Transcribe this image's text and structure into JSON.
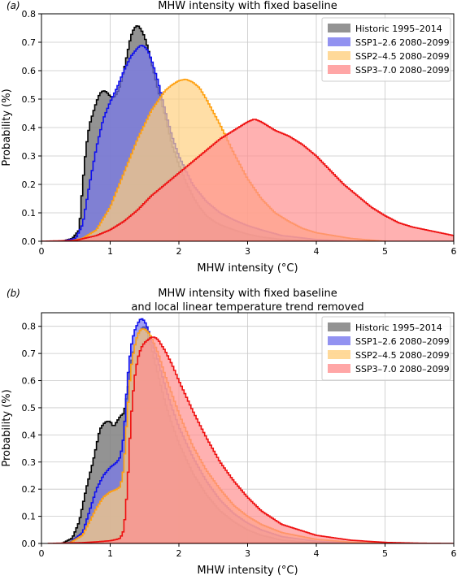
{
  "chart_data": [
    {
      "type": "area",
      "panel_label": "(a)",
      "title": "MHW intensity with fixed baseline",
      "xlabel": "MHW intensity (°C)",
      "ylabel": "Probability (%)",
      "xlim": [
        0,
        6
      ],
      "ylim": [
        0,
        0.8
      ],
      "xticks": [
        0,
        1,
        2,
        3,
        4,
        5,
        6
      ],
      "yticks": [
        0.0,
        0.1,
        0.2,
        0.3,
        0.4,
        0.5,
        0.6,
        0.7,
        0.8
      ],
      "grid": true,
      "legend_position": "top-right",
      "series": [
        {
          "name": "Historic 1995–2014",
          "fill": "#808080",
          "edge": "#000000",
          "x": [
            0.3,
            0.45,
            0.55,
            0.6,
            0.65,
            0.7,
            0.75,
            0.8,
            0.85,
            0.9,
            0.95,
            1.0,
            1.05,
            1.1,
            1.15,
            1.2,
            1.25,
            1.3,
            1.35,
            1.4,
            1.45,
            1.5,
            1.55,
            1.6,
            1.7,
            1.8,
            1.9,
            2.0,
            2.1,
            2.2,
            2.3,
            2.4,
            2.5,
            2.6,
            2.8,
            3.0,
            3.2,
            3.4,
            3.6,
            3.8,
            4.0,
            4.5
          ],
          "y": [
            0.0,
            0.01,
            0.04,
            0.2,
            0.33,
            0.41,
            0.45,
            0.49,
            0.52,
            0.53,
            0.525,
            0.51,
            0.505,
            0.52,
            0.55,
            0.6,
            0.66,
            0.72,
            0.75,
            0.76,
            0.745,
            0.72,
            0.68,
            0.63,
            0.53,
            0.44,
            0.34,
            0.27,
            0.21,
            0.16,
            0.12,
            0.09,
            0.072,
            0.058,
            0.04,
            0.025,
            0.015,
            0.009,
            0.005,
            0.003,
            0.001,
            0.0
          ]
        },
        {
          "name": "SSP1–2.6 2080–2099",
          "fill": "#7777ee",
          "edge": "#1010ee",
          "x": [
            0.3,
            0.5,
            0.6,
            0.7,
            0.8,
            0.9,
            1.0,
            1.1,
            1.2,
            1.3,
            1.4,
            1.45,
            1.5,
            1.55,
            1.6,
            1.7,
            1.8,
            1.9,
            2.0,
            2.2,
            2.4,
            2.6,
            2.8,
            3.0,
            3.2,
            3.5,
            4.0,
            4.5
          ],
          "y": [
            0.0,
            0.01,
            0.06,
            0.2,
            0.33,
            0.43,
            0.49,
            0.54,
            0.6,
            0.65,
            0.68,
            0.69,
            0.685,
            0.67,
            0.64,
            0.56,
            0.46,
            0.37,
            0.3,
            0.2,
            0.14,
            0.1,
            0.075,
            0.055,
            0.04,
            0.02,
            0.006,
            0.0
          ]
        },
        {
          "name": "SSP2–4.5 2080–2099",
          "fill": "#ffd080",
          "edge": "#ffa010",
          "x": [
            0.4,
            0.6,
            0.8,
            1.0,
            1.2,
            1.4,
            1.6,
            1.8,
            1.9,
            2.0,
            2.1,
            2.2,
            2.3,
            2.4,
            2.6,
            2.8,
            3.0,
            3.2,
            3.4,
            3.6,
            3.8,
            4.0,
            4.5,
            5.0
          ],
          "y": [
            0.0,
            0.01,
            0.04,
            0.12,
            0.24,
            0.36,
            0.46,
            0.53,
            0.55,
            0.565,
            0.57,
            0.56,
            0.54,
            0.5,
            0.41,
            0.31,
            0.22,
            0.15,
            0.1,
            0.07,
            0.045,
            0.03,
            0.01,
            0.0
          ]
        },
        {
          "name": "SSP3–7.0 2080–2099",
          "fill": "#ff9090",
          "edge": "#ee1010",
          "x": [
            0.0,
            0.5,
            0.8,
            1.0,
            1.2,
            1.4,
            1.6,
            1.8,
            2.0,
            2.2,
            2.4,
            2.6,
            2.8,
            3.0,
            3.1,
            3.2,
            3.4,
            3.6,
            3.8,
            4.0,
            4.2,
            4.4,
            4.6,
            4.8,
            5.0,
            5.2,
            5.4,
            5.6,
            5.8,
            6.0
          ],
          "y": [
            0.0,
            0.003,
            0.02,
            0.04,
            0.07,
            0.11,
            0.16,
            0.2,
            0.24,
            0.28,
            0.32,
            0.36,
            0.39,
            0.42,
            0.43,
            0.42,
            0.39,
            0.37,
            0.34,
            0.3,
            0.25,
            0.2,
            0.16,
            0.12,
            0.09,
            0.065,
            0.05,
            0.04,
            0.03,
            0.02
          ]
        }
      ]
    },
    {
      "type": "area",
      "panel_label": "(b)",
      "title": "MHW intensity with fixed baseline",
      "subtitle": "and local linear temperature trend removed",
      "xlabel": "MHW intensity (°C)",
      "ylabel": "Probability (%)",
      "xlim": [
        0,
        6
      ],
      "ylim": [
        0,
        0.85
      ],
      "xticks": [
        0,
        1,
        2,
        3,
        4,
        5,
        6
      ],
      "yticks": [
        0.0,
        0.1,
        0.2,
        0.3,
        0.4,
        0.5,
        0.6,
        0.7,
        0.8
      ],
      "grid": true,
      "legend_position": "top-right",
      "series": [
        {
          "name": "Historic 1995–2014",
          "fill": "#808080",
          "edge": "#000000",
          "x": [
            0.3,
            0.45,
            0.55,
            0.65,
            0.75,
            0.8,
            0.85,
            0.9,
            0.95,
            1.0,
            1.05,
            1.1,
            1.15,
            1.2,
            1.25,
            1.3,
            1.35,
            1.4,
            1.45,
            1.5,
            1.55,
            1.6,
            1.7,
            1.8,
            1.9,
            2.0,
            2.2,
            2.4,
            2.6,
            2.8,
            3.0,
            3.2,
            3.5,
            4.0,
            4.5
          ],
          "y": [
            0.0,
            0.02,
            0.08,
            0.2,
            0.3,
            0.36,
            0.42,
            0.44,
            0.45,
            0.45,
            0.43,
            0.45,
            0.47,
            0.48,
            0.55,
            0.66,
            0.72,
            0.76,
            0.79,
            0.8,
            0.77,
            0.72,
            0.62,
            0.52,
            0.44,
            0.37,
            0.26,
            0.18,
            0.12,
            0.08,
            0.05,
            0.03,
            0.012,
            0.003,
            0.0
          ]
        },
        {
          "name": "SSP1–2.6 2080–2099",
          "fill": "#7777ee",
          "edge": "#1010ee",
          "x": [
            0.4,
            0.6,
            0.7,
            0.8,
            0.9,
            1.0,
            1.05,
            1.1,
            1.15,
            1.2,
            1.25,
            1.3,
            1.35,
            1.4,
            1.45,
            1.5,
            1.55,
            1.6,
            1.7,
            1.8,
            1.9,
            2.0,
            2.2,
            2.4,
            2.6,
            2.8,
            3.0,
            3.2,
            3.5,
            4.0,
            4.5,
            5.0
          ],
          "y": [
            0.0,
            0.04,
            0.12,
            0.2,
            0.25,
            0.28,
            0.29,
            0.3,
            0.32,
            0.4,
            0.6,
            0.72,
            0.78,
            0.81,
            0.83,
            0.82,
            0.79,
            0.75,
            0.67,
            0.58,
            0.5,
            0.43,
            0.32,
            0.23,
            0.16,
            0.11,
            0.075,
            0.05,
            0.025,
            0.008,
            0.002,
            0.0
          ]
        },
        {
          "name": "SSP2–4.5 2080–2099",
          "fill": "#ffd080",
          "edge": "#ffa010",
          "x": [
            0.4,
            0.6,
            0.7,
            0.8,
            0.9,
            1.0,
            1.1,
            1.15,
            1.2,
            1.25,
            1.3,
            1.35,
            1.4,
            1.45,
            1.5,
            1.55,
            1.6,
            1.7,
            1.8,
            1.9,
            2.0,
            2.2,
            2.4,
            2.6,
            2.8,
            3.0,
            3.2,
            3.5,
            4.0,
            4.5,
            5.0,
            5.5
          ],
          "y": [
            0.0,
            0.03,
            0.08,
            0.13,
            0.17,
            0.19,
            0.2,
            0.21,
            0.28,
            0.48,
            0.64,
            0.72,
            0.77,
            0.79,
            0.79,
            0.78,
            0.76,
            0.7,
            0.62,
            0.55,
            0.48,
            0.36,
            0.27,
            0.2,
            0.14,
            0.1,
            0.07,
            0.04,
            0.015,
            0.005,
            0.001,
            0.0
          ]
        },
        {
          "name": "SSP3–7.0 2080–2099",
          "fill": "#ff9090",
          "edge": "#ee1010",
          "x": [
            0.1,
            0.6,
            0.8,
            1.0,
            1.1,
            1.15,
            1.2,
            1.25,
            1.3,
            1.35,
            1.4,
            1.45,
            1.5,
            1.55,
            1.6,
            1.65,
            1.7,
            1.8,
            1.9,
            2.0,
            2.2,
            2.4,
            2.6,
            2.8,
            3.0,
            3.2,
            3.5,
            4.0,
            4.5,
            5.0,
            5.5,
            6.0
          ],
          "y": [
            0.0,
            0.003,
            0.006,
            0.01,
            0.015,
            0.02,
            0.05,
            0.2,
            0.45,
            0.6,
            0.68,
            0.72,
            0.74,
            0.75,
            0.76,
            0.76,
            0.75,
            0.71,
            0.66,
            0.6,
            0.49,
            0.39,
            0.3,
            0.23,
            0.17,
            0.12,
            0.07,
            0.03,
            0.012,
            0.004,
            0.001,
            0.0
          ]
        }
      ]
    }
  ]
}
